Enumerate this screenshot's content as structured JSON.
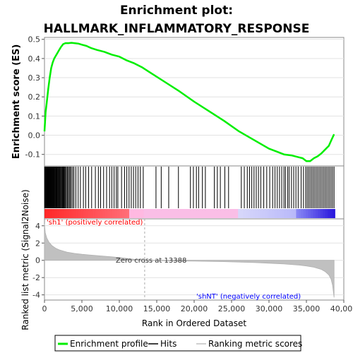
{
  "chart_data": {
    "type": "line",
    "title_line1": "Enrichment plot:",
    "title_line2": "HALLMARK_INFLAMMATORY_RESPONSE",
    "es_panel": {
      "ylabel": "Enrichment score (ES)",
      "ylim": [
        -0.16,
        0.51
      ],
      "yticks": [
        -0.1,
        0.0,
        0.1,
        0.2,
        0.3,
        0.4,
        0.5
      ],
      "ytick_labels": [
        "-0.1",
        "0.0",
        "0.1",
        "0.2",
        "0.3",
        "0.4",
        "0.5"
      ],
      "series": [
        {
          "name": "Enrichment profile",
          "color": "#00ee00",
          "x": [
            0,
            150,
            300,
            500,
            700,
            900,
            1100,
            1300,
            1600,
            1900,
            2200,
            2500,
            2800,
            3200,
            3600,
            4000,
            4500,
            5000,
            5600,
            6200,
            7000,
            8000,
            9000,
            10000,
            11000,
            12000,
            13000,
            14000,
            16000,
            18000,
            20000,
            22000,
            24000,
            26000,
            28000,
            30000,
            31000,
            32000,
            33000,
            34000,
            34500,
            35000,
            35500,
            36000,
            36500,
            37000,
            37500,
            38000,
            38400,
            38700
          ],
          "y": [
            0.02,
            0.12,
            0.17,
            0.24,
            0.3,
            0.35,
            0.38,
            0.4,
            0.42,
            0.44,
            0.46,
            0.475,
            0.48,
            0.48,
            0.482,
            0.48,
            0.478,
            0.472,
            0.466,
            0.455,
            0.445,
            0.435,
            0.42,
            0.41,
            0.39,
            0.375,
            0.355,
            0.33,
            0.28,
            0.23,
            0.175,
            0.125,
            0.075,
            0.02,
            -0.025,
            -0.07,
            -0.085,
            -0.1,
            -0.105,
            -0.115,
            -0.12,
            -0.135,
            -0.135,
            -0.12,
            -0.11,
            -0.095,
            -0.075,
            -0.055,
            -0.02,
            0.005
          ]
        }
      ]
    },
    "hits_panel": {
      "legend": "Hits",
      "hit_positions": [
        20,
        60,
        110,
        160,
        200,
        260,
        310,
        360,
        420,
        470,
        520,
        580,
        640,
        700,
        760,
        820,
        880,
        950,
        1020,
        1080,
        1150,
        1230,
        1300,
        1380,
        1450,
        1530,
        1600,
        1680,
        1760,
        1850,
        1930,
        2020,
        2110,
        2200,
        2300,
        2400,
        2500,
        2600,
        2700,
        2800,
        2920,
        3050,
        3180,
        3320,
        3450,
        3600,
        3780,
        3950,
        4200,
        4500,
        4800,
        5200,
        5500,
        5900,
        6300,
        6800,
        7200,
        7500,
        7900,
        8300,
        8700,
        9000,
        9300,
        9600,
        9800,
        10300,
        10700,
        11000,
        11300,
        11600,
        11900,
        12200,
        12500,
        12800,
        13200,
        14900,
        15600,
        16600,
        17900,
        19500,
        19900,
        20300,
        20600,
        21100,
        21500,
        22700,
        23100,
        23500,
        24100,
        24600,
        26300,
        26700,
        27100,
        27400,
        27700,
        28000,
        28300,
        28600,
        28900,
        29300,
        29700,
        30100,
        30500,
        30800,
        31100,
        31400,
        31700,
        32000,
        32200,
        32500,
        32700,
        33000,
        33300,
        33600,
        33900,
        34300,
        34600,
        34900,
        35100,
        35300,
        35500,
        35700,
        35900,
        36100,
        36300,
        36500,
        36700,
        36900,
        37100,
        37300,
        37500,
        37700,
        37900,
        38100,
        38300,
        38500,
        38700
      ]
    },
    "metric_panel": {
      "ylabel": "Ranked list metric (Signal2Noise)",
      "ylim": [
        -4.6,
        4.8
      ],
      "yticks": [
        -4,
        -2,
        0,
        2,
        4
      ],
      "ytick_labels": [
        "-4",
        "-2",
        "0",
        "2",
        "4"
      ],
      "legend": "Ranking metric scores",
      "x": [
        0,
        100,
        300,
        600,
        1000,
        1500,
        2000,
        3000,
        4000,
        5000,
        6000,
        7000,
        8000,
        9000,
        10000,
        11000,
        12000,
        13000,
        13388,
        14000,
        16000,
        18000,
        20000,
        22000,
        24000,
        26000,
        28000,
        30000,
        32000,
        34000,
        35000,
        36000,
        37000,
        37500,
        38000,
        38300,
        38500,
        38700
      ],
      "y": [
        4.2,
        3.2,
        2.6,
        2.1,
        1.7,
        1.4,
        1.2,
        0.95,
        0.8,
        0.7,
        0.62,
        0.55,
        0.48,
        0.4,
        0.32,
        0.22,
        0.12,
        0.03,
        0.0,
        -0.02,
        -0.05,
        -0.08,
        -0.1,
        -0.12,
        -0.15,
        -0.2,
        -0.26,
        -0.33,
        -0.42,
        -0.55,
        -0.65,
        -0.8,
        -1.05,
        -1.3,
        -1.7,
        -2.2,
        -2.9,
        -4.3
      ],
      "zero_cross_label": "Zero cross at 13388",
      "zero_cross_x": 13388,
      "pos_label": "'sh1' (positively correlated)",
      "neg_label": "'shNT' (negatively correlated)",
      "pos_color": "#ff0000",
      "neg_color": "#0000ff"
    },
    "xaxis": {
      "xlabel": "Rank in Ordered Dataset",
      "xlim": [
        0,
        40000
      ],
      "xticks": [
        0,
        5000,
        10000,
        15000,
        20000,
        25000,
        30000,
        35000,
        40000
      ],
      "xtick_labels": [
        "0",
        "5,000",
        "10,000",
        "15,000",
        "20,000",
        "25,000",
        "30,000",
        "35,000",
        "40,000"
      ],
      "n_genes": 38800
    },
    "legend": {
      "placement": "bottom",
      "items": [
        {
          "label": "Enrichment profile",
          "color": "#00ee00"
        },
        {
          "label": "Hits",
          "color": "#000000"
        },
        {
          "label": "Ranking metric scores",
          "color": "#c0c0c0"
        }
      ]
    }
  }
}
